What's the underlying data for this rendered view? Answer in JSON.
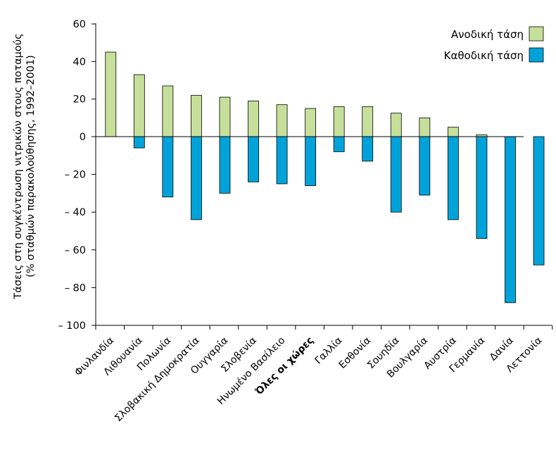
{
  "chart_data": {
    "type": "bar",
    "ylabel_lines": [
      "Τάσεις στη συγκέντρωση νιτρικών στους ποταμούς",
      "(% σταθμών παρακολούθησης, 1992–2001)"
    ],
    "ylim": [
      -100,
      60
    ],
    "yticks": [
      60,
      40,
      20,
      0,
      -20,
      -40,
      -60,
      -80,
      -100
    ],
    "ytick_labels": [
      "60",
      "40",
      "20",
      "0",
      "– 20",
      "– 40",
      "– 60",
      "– 80",
      "– 100"
    ],
    "grid": false,
    "legend_position": "top-right",
    "categories": [
      "Φινλανδία",
      "Λιθουανία",
      "Πολωνία",
      "Σλοβακική Δημοκρατία",
      "Ουγγαρία",
      "Σλοβενία",
      "Ηνωμένο Βασίλειο",
      "Όλες οι χώρες",
      "Γαλλία",
      "Εσθονία",
      "Σουηδία",
      "Βουλγαρία",
      "Αυστρία",
      "Γερμανία",
      "Δανία",
      "Λεττονία"
    ],
    "bold_category": "Όλες οι χώρες",
    "series": [
      {
        "name": "Ανοδική τάση",
        "color": "#c6e09b",
        "values": [
          45,
          33,
          27,
          22,
          21,
          19,
          17,
          15,
          16,
          16,
          12.5,
          10,
          5,
          1,
          0,
          0
        ]
      },
      {
        "name": "Καθοδική τάση",
        "color": "#00a3d9",
        "values": [
          0,
          -6,
          -32,
          -44,
          -30,
          -24,
          -25,
          -26,
          -8,
          -13,
          -40,
          -31,
          -44,
          -54,
          -88,
          -68
        ]
      }
    ]
  }
}
